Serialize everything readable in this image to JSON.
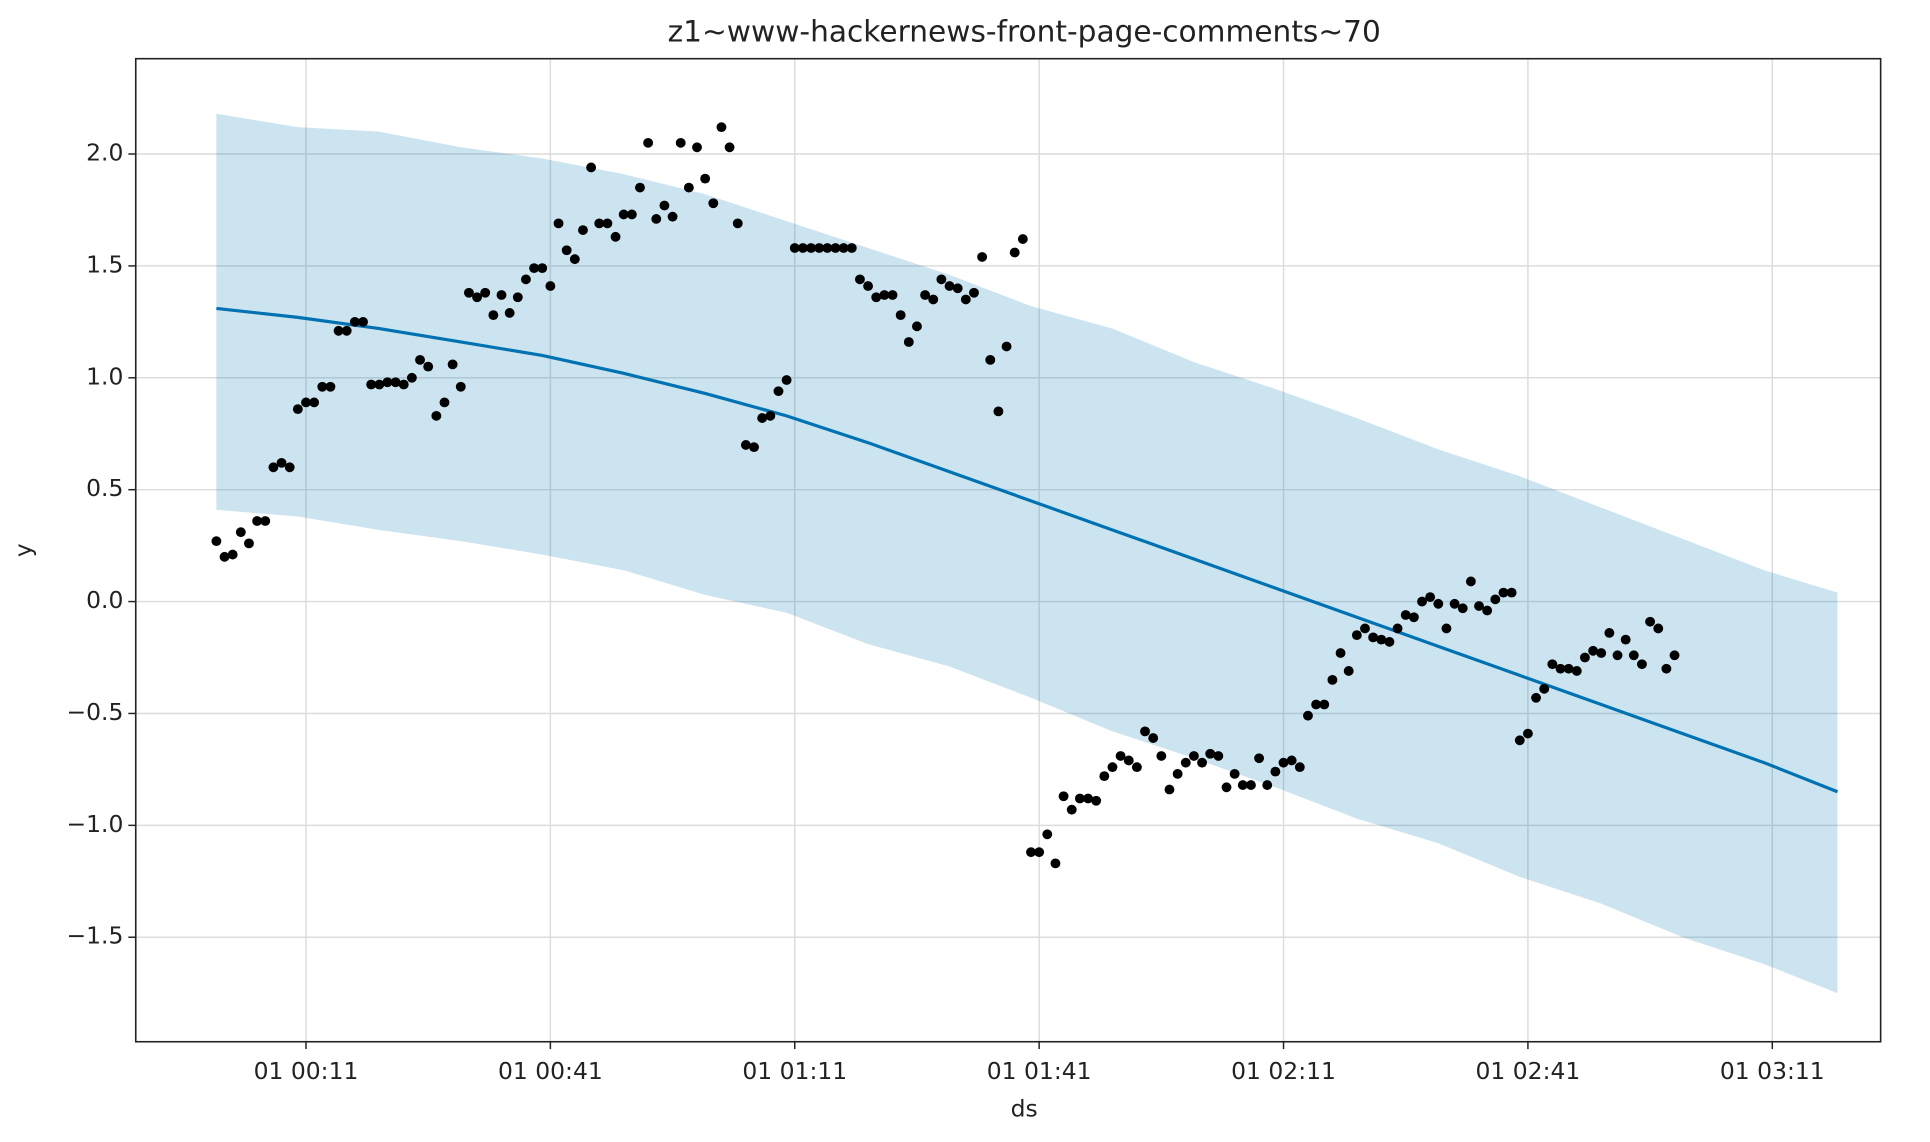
{
  "chart_data": {
    "type": "line",
    "title": "z1~www-hackernews-front-page-comments~70",
    "x_label": "ds",
    "y_label": "y",
    "xlim": [
      -9.9,
      204.3
    ],
    "ylim": [
      -1.967,
      2.426
    ],
    "xticks": [
      {
        "value": 11,
        "label": "01 00:11"
      },
      {
        "value": 41,
        "label": "01 00:41"
      },
      {
        "value": 71,
        "label": "01 01:11"
      },
      {
        "value": 101,
        "label": "01 01:41"
      },
      {
        "value": 131,
        "label": "01 02:11"
      },
      {
        "value": 161,
        "label": "01 02:41"
      },
      {
        "value": 191,
        "label": "01 03:11"
      }
    ],
    "yticks": [
      {
        "value": -1.5,
        "label": "−1.5"
      },
      {
        "value": -1,
        "label": "−1.0"
      },
      {
        "value": -0.5,
        "label": "−0.5"
      },
      {
        "value": 0,
        "label": "0.0"
      },
      0.5,
      {
        "value": 1,
        "label": "1.0"
      },
      1.5,
      {
        "value": 2,
        "label": "2.0"
      }
    ],
    "grid": true,
    "points": {
      "color": "#000000",
      "x": [
        0,
        1,
        2,
        3,
        4,
        5,
        6,
        7,
        8,
        9,
        10,
        11,
        12,
        13,
        14,
        15,
        16,
        17,
        18,
        19,
        20,
        21,
        22,
        23,
        24,
        25,
        26,
        27,
        28,
        29,
        30,
        31,
        32,
        33,
        34,
        35,
        36,
        37,
        38,
        39,
        40,
        41,
        42,
        43,
        44,
        45,
        46,
        47,
        48,
        49,
        50,
        51,
        52,
        53,
        54,
        55,
        56,
        57,
        58,
        59,
        60,
        61,
        62,
        63,
        64,
        65,
        66,
        67,
        68,
        69,
        70,
        71,
        72,
        73,
        74,
        75,
        76,
        77,
        78,
        79,
        80,
        81,
        82,
        83,
        84,
        85,
        86,
        87,
        88,
        89,
        90,
        91,
        92,
        93,
        94,
        95,
        96,
        97,
        98,
        99,
        100,
        101,
        102,
        103,
        104,
        105,
        106,
        107,
        108,
        109,
        110,
        111,
        112,
        113,
        114,
        115,
        116,
        117,
        118,
        119,
        120,
        121,
        122,
        123,
        124,
        125,
        126,
        127,
        128,
        129,
        130,
        131,
        132,
        133,
        134,
        135,
        136,
        137,
        138,
        139,
        140,
        141,
        142,
        143,
        144,
        145,
        146,
        147,
        148,
        149,
        150,
        151,
        152,
        153,
        154,
        155,
        156,
        157,
        158,
        159,
        160,
        161,
        162,
        163,
        164,
        165,
        166,
        167,
        168,
        169,
        170,
        171,
        172,
        173,
        174,
        175,
        176,
        177,
        178,
        179
      ],
      "values": [
        0.27,
        0.2,
        0.21,
        0.31,
        0.26,
        0.36,
        0.36,
        0.6,
        0.62,
        0.6,
        0.86,
        0.89,
        0.89,
        0.96,
        0.96,
        1.21,
        1.21,
        1.25,
        1.25,
        0.97,
        0.97,
        0.98,
        0.98,
        0.97,
        1.0,
        1.08,
        1.05,
        0.83,
        0.89,
        1.06,
        0.96,
        1.38,
        1.36,
        1.38,
        1.28,
        1.37,
        1.29,
        1.36,
        1.44,
        1.49,
        1.49,
        1.41,
        1.69,
        1.57,
        1.53,
        1.66,
        1.94,
        1.69,
        1.69,
        1.63,
        1.73,
        1.73,
        1.85,
        2.05,
        1.71,
        1.77,
        1.72,
        2.05,
        1.85,
        2.03,
        1.89,
        1.78,
        2.12,
        2.03,
        1.69,
        0.7,
        0.69,
        0.82,
        0.83,
        0.94,
        0.99,
        1.58,
        1.58,
        1.58,
        1.58,
        1.58,
        1.58,
        1.58,
        1.58,
        1.44,
        1.41,
        1.36,
        1.37,
        1.37,
        1.28,
        1.16,
        1.23,
        1.37,
        1.35,
        1.44,
        1.41,
        1.4,
        1.35,
        1.38,
        1.54,
        1.08,
        0.85,
        1.14,
        1.56,
        1.62,
        -1.12,
        -1.12,
        -1.04,
        -1.17,
        -0.87,
        -0.93,
        -0.88,
        -0.88,
        -0.89,
        -0.78,
        -0.74,
        -0.69,
        -0.71,
        -0.74,
        -0.58,
        -0.61,
        -0.69,
        -0.84,
        -0.77,
        -0.72,
        -0.69,
        -0.72,
        -0.68,
        -0.69,
        -0.83,
        -0.77,
        -0.82,
        -0.82,
        -0.7,
        -0.82,
        -0.76,
        -0.72,
        -0.71,
        -0.74,
        -0.51,
        -0.46,
        -0.46,
        -0.35,
        -0.23,
        -0.31,
        -0.15,
        -0.12,
        -0.16,
        -0.17,
        -0.18,
        -0.12,
        -0.06,
        -0.07,
        0.0,
        0.02,
        -0.01,
        -0.12,
        -0.01,
        -0.03,
        0.09,
        -0.02,
        -0.04,
        0.01,
        0.04,
        0.04,
        -0.62,
        -0.59,
        -0.43,
        -0.39,
        -0.28,
        -0.3,
        -0.3,
        -0.31,
        -0.25,
        -0.22,
        -0.23,
        -0.14,
        -0.24,
        -0.17,
        -0.24,
        -0.28,
        -0.09,
        -0.12,
        -0.3,
        -0.24
      ]
    },
    "forecast": {
      "color": "#0072b2",
      "x": [
        0,
        10,
        20,
        30,
        40,
        50,
        60,
        70,
        80,
        90,
        100,
        110,
        120,
        130,
        140,
        150,
        160,
        170,
        180,
        190,
        199
      ],
      "values": [
        1.31,
        1.27,
        1.22,
        1.16,
        1.1,
        1.02,
        0.93,
        0.83,
        0.71,
        0.58,
        0.45,
        0.32,
        0.19,
        0.06,
        -0.07,
        -0.2,
        -0.33,
        -0.46,
        -0.59,
        -0.72,
        -0.85
      ],
      "upper": [
        2.18,
        2.12,
        2.1,
        2.03,
        1.98,
        1.91,
        1.82,
        1.7,
        1.58,
        1.46,
        1.32,
        1.22,
        1.07,
        0.95,
        0.82,
        0.68,
        0.56,
        0.42,
        0.28,
        0.14,
        0.04
      ],
      "lower": [
        0.41,
        0.38,
        0.32,
        0.27,
        0.21,
        0.14,
        0.03,
        -0.05,
        -0.19,
        -0.29,
        -0.43,
        -0.58,
        -0.7,
        -0.83,
        -0.97,
        -1.08,
        -1.23,
        -1.35,
        -1.5,
        -1.62,
        -1.75
      ]
    }
  }
}
